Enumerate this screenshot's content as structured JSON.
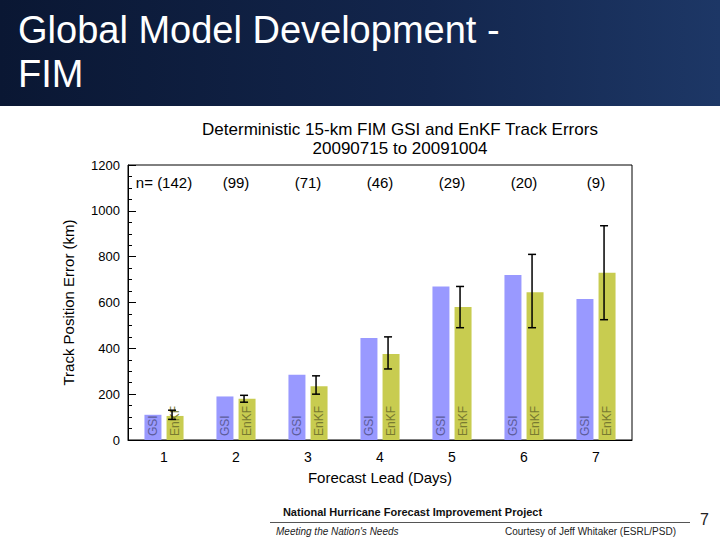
{
  "slide": {
    "title_lines": [
      "Global Model Development -",
      "FIM"
    ],
    "footer_project": "National Hurricane Forecast Improvement Project",
    "footer_tagline": "Meeting the Nation's Needs",
    "footer_credit": "Courtesy of Jeff Whitaker (ESRL/PSD)",
    "page_number": 7
  },
  "chart_data": {
    "type": "bar",
    "title": "Deterministic 15-km FIM GSI and EnKF Track Errors",
    "subtitle": "20090715 to 20091004",
    "x_label": "Forecast Lead (Days)",
    "y_label": "Track Position Error (km)",
    "categories": [
      "1",
      "2",
      "3",
      "4",
      "5",
      "6",
      "7"
    ],
    "sample_size_labels": [
      "n= (142)",
      "(99)",
      "(71)",
      "(46)",
      "(29)",
      "(20)",
      "(9)"
    ],
    "series": [
      {
        "name": "GSI",
        "color": "#9999ff",
        "values": [
          110,
          190,
          285,
          445,
          670,
          720,
          615
        ]
      },
      {
        "name": "EnKF",
        "color": "#c8cc50",
        "values": [
          105,
          180,
          235,
          375,
          580,
          645,
          730
        ],
        "error_bars": [
          [
            90,
            130
          ],
          [
            165,
            195
          ],
          [
            200,
            280
          ],
          [
            310,
            450
          ],
          [
            490,
            670
          ],
          [
            490,
            810
          ],
          [
            525,
            935
          ]
        ]
      }
    ],
    "ylim": [
      0,
      1200
    ],
    "yticks": [
      0,
      200,
      400,
      600,
      800,
      1000,
      1200
    ],
    "grid": false
  }
}
